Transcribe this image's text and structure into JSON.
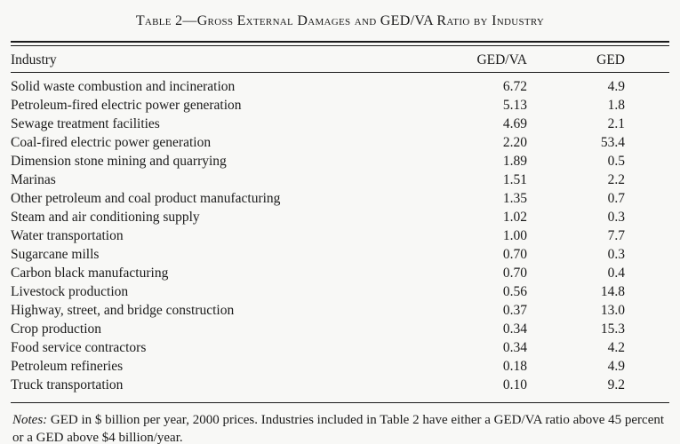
{
  "table": {
    "title": "Table 2—Gross External Damages and GED/VA Ratio by Industry",
    "columns": [
      "Industry",
      "GED/VA",
      "GED"
    ],
    "rows": [
      {
        "industry": "Solid waste combustion and incineration",
        "ged_va": "6.72",
        "ged": "4.9"
      },
      {
        "industry": "Petroleum-fired electric power generation",
        "ged_va": "5.13",
        "ged": "1.8"
      },
      {
        "industry": "Sewage treatment facilities",
        "ged_va": "4.69",
        "ged": "2.1"
      },
      {
        "industry": "Coal-fired electric power generation",
        "ged_va": "2.20",
        "ged": "53.4"
      },
      {
        "industry": "Dimension stone mining and quarrying",
        "ged_va": "1.89",
        "ged": "0.5"
      },
      {
        "industry": "Marinas",
        "ged_va": "1.51",
        "ged": "2.2"
      },
      {
        "industry": "Other petroleum and coal product manufacturing",
        "ged_va": "1.35",
        "ged": "0.7"
      },
      {
        "industry": "Steam and air conditioning supply",
        "ged_va": "1.02",
        "ged": "0.3"
      },
      {
        "industry": "Water transportation",
        "ged_va": "1.00",
        "ged": "7.7"
      },
      {
        "industry": "Sugarcane mills",
        "ged_va": "0.70",
        "ged": "0.3"
      },
      {
        "industry": "Carbon black manufacturing",
        "ged_va": "0.70",
        "ged": "0.4"
      },
      {
        "industry": "Livestock production",
        "ged_va": "0.56",
        "ged": "14.8"
      },
      {
        "industry": "Highway, street, and bridge construction",
        "ged_va": "0.37",
        "ged": "13.0"
      },
      {
        "industry": "Crop production",
        "ged_va": "0.34",
        "ged": "15.3"
      },
      {
        "industry": "Food service contractors",
        "ged_va": "0.34",
        "ged": "4.2"
      },
      {
        "industry": "Petroleum refineries",
        "ged_va": "0.18",
        "ged": "4.9"
      },
      {
        "industry": "Truck transportation",
        "ged_va": "0.10",
        "ged": "9.2"
      }
    ]
  },
  "notes": {
    "label": "Notes:",
    "text": " GED in $ billion per year, 2000 prices. Industries included in Table 2 have either a GED/VA ratio above 45 percent or a GED above $4 billion/year."
  }
}
